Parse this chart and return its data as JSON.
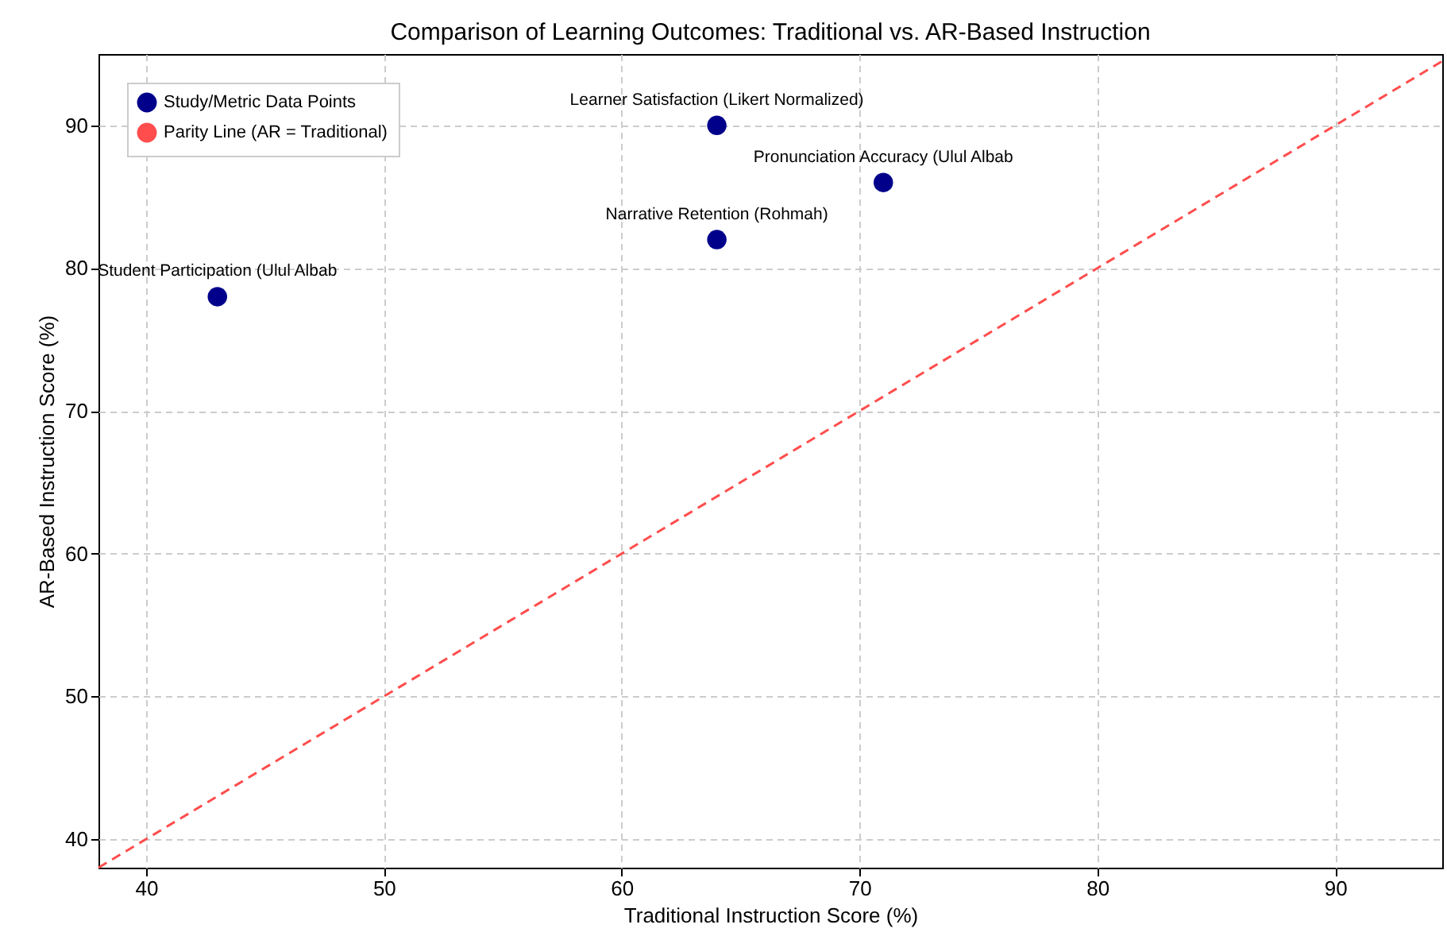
{
  "chart_data": {
    "type": "scatter",
    "title": "Comparison of Learning Outcomes: Traditional vs. AR-Based Instruction",
    "xlabel": "Traditional Instruction Score (%)",
    "ylabel": "AR-Based Instruction Score (%)",
    "series": [
      {
        "name": "Study/Metric Data Points",
        "color": "#00008b",
        "marker": "circle",
        "x": [
          43,
          64,
          71,
          64
        ],
        "values": [
          78,
          90,
          86,
          82
        ]
      },
      {
        "name": "Parity Line (AR = Traditional)",
        "type": "line",
        "color": "#ff4d4d",
        "line_style": "dashed",
        "marker": "none",
        "x": [
          38,
          94.5
        ],
        "values": [
          38,
          94.5
        ]
      }
    ],
    "annotations": [
      {
        "text": "Student Participation (Ulul Albab",
        "x": 43,
        "y": 78
      },
      {
        "text": "Learner Satisfaction (Likert Normalized)",
        "x": 64,
        "y": 90
      },
      {
        "text": "Pronunciation Accuracy (Ulul Albab",
        "x": 71,
        "y": 86
      },
      {
        "text": "Narrative Retention (Rohmah)",
        "x": 64,
        "y": 82
      }
    ],
    "xlim": [
      38,
      94.5
    ],
    "ylim": [
      38,
      95
    ],
    "xticks": [
      40,
      50,
      60,
      70,
      80,
      90
    ],
    "yticks": [
      40,
      50,
      60,
      70,
      80,
      90
    ],
    "grid": true,
    "legend": "top left"
  }
}
